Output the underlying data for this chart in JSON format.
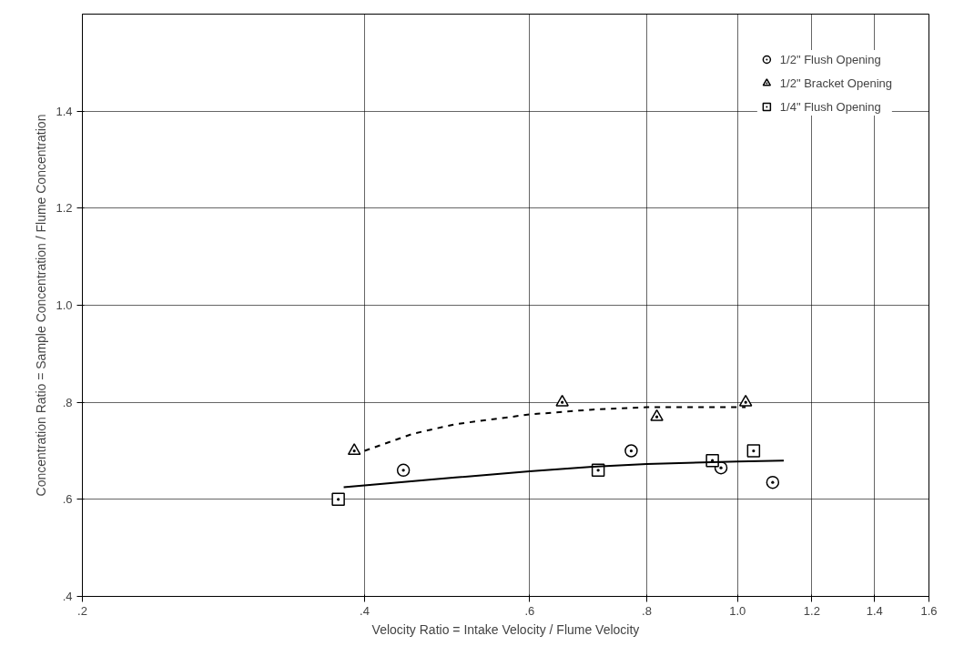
{
  "chart_data": {
    "type": "scatter",
    "xlabel": "Velocity Ratio = Intake Velocity / Flume Velocity",
    "ylabel": "Concentration Ratio = Sample Concentration / Flume Concentration",
    "log": "x",
    "xlim": [
      0.2,
      1.6
    ],
    "ylim": [
      0.4,
      1.6
    ],
    "xticks": [
      {
        "value": 0.2,
        "label": ".2"
      },
      {
        "value": 0.4,
        "label": ".4"
      },
      {
        "value": 0.6,
        "label": ".6"
      },
      {
        "value": 0.8,
        "label": ".8"
      },
      {
        "value": 1.0,
        "label": "1.0"
      },
      {
        "value": 1.2,
        "label": "1.2"
      },
      {
        "value": 1.4,
        "label": "1.4"
      },
      {
        "value": 1.6,
        "label": "1.6"
      }
    ],
    "yticks": [
      {
        "value": 0.4,
        "label": ".4"
      },
      {
        "value": 0.6,
        "label": ".6"
      },
      {
        "value": 0.8,
        "label": ".8"
      },
      {
        "value": 1.0,
        "label": "1.0"
      },
      {
        "value": 1.2,
        "label": "1.2"
      },
      {
        "value": 1.4,
        "label": "1.4"
      }
    ],
    "grid": true,
    "legend": "top right",
    "series": [
      {
        "name": "1/2\" Flush Opening",
        "marker": "circle",
        "color": "#000000",
        "x": [
          0.44,
          0.77,
          0.96,
          1.09
        ],
        "values": [
          0.66,
          0.7,
          0.665,
          0.635
        ]
      },
      {
        "name": "1/2\" Bracket Opening",
        "marker": "triangle",
        "color": "#000000",
        "x": [
          0.39,
          0.65,
          0.82,
          1.02
        ],
        "values": [
          0.7,
          0.8,
          0.77,
          0.8
        ]
      },
      {
        "name": "1/4\" Flush Opening",
        "marker": "square",
        "color": "#000000",
        "x": [
          0.375,
          0.71,
          0.94,
          1.04
        ],
        "values": [
          0.6,
          0.66,
          0.68,
          0.7
        ]
      },
      {
        "type": "line",
        "marker": "none",
        "line_style": "dashed",
        "color": "#000000",
        "x": [
          0.4,
          0.45,
          0.5,
          0.6,
          0.7,
          0.8,
          1.02
        ],
        "values": [
          0.7,
          0.735,
          0.755,
          0.775,
          0.785,
          0.79,
          0.79
        ]
      },
      {
        "type": "line",
        "marker": "none",
        "line_style": "solid",
        "color": "#000000",
        "x": [
          0.38,
          0.5,
          0.6,
          0.7,
          0.8,
          1.0,
          1.12
        ],
        "values": [
          0.625,
          0.645,
          0.658,
          0.667,
          0.673,
          0.678,
          0.68
        ]
      }
    ]
  }
}
